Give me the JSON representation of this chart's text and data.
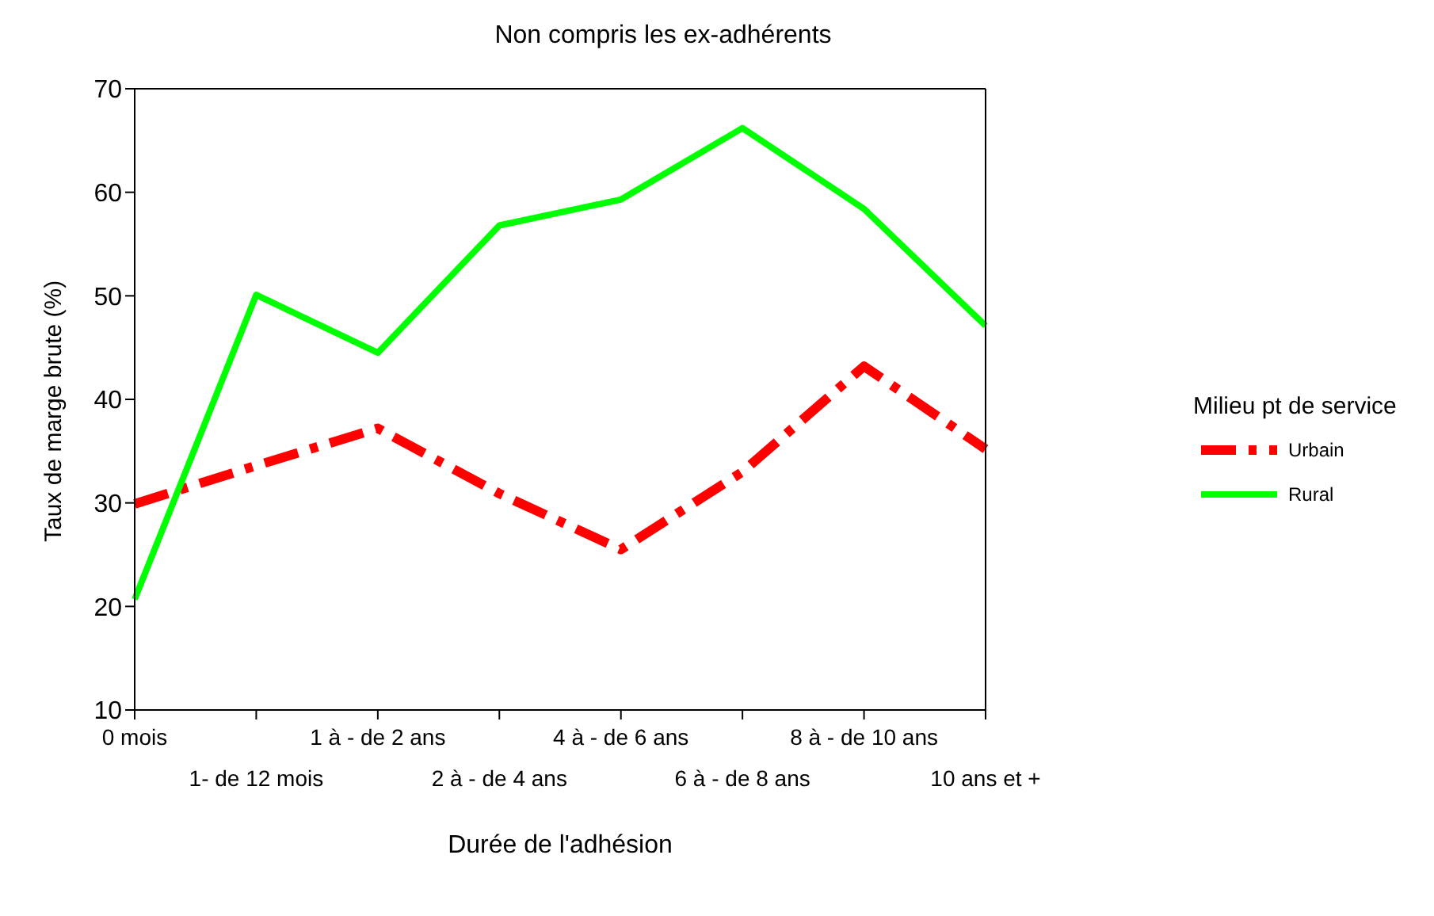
{
  "chart_data": {
    "type": "line",
    "title": "Non compris les ex-adhérents",
    "xlabel": "Durée de l'adhésion",
    "ylabel": "Taux de marge brute (%)",
    "legend_title": "Milieu pt de service",
    "categories": [
      "0 mois",
      "1- de 12 mois",
      "1 à - de 2 ans",
      "2 à - de 4 ans",
      "4 à - de 6 ans",
      "6 à - de 8 ans",
      "8 à - de 10 ans",
      "10 ans et +"
    ],
    "series": [
      {
        "name": "Urbain",
        "color": "#ff0000",
        "line_style": "dashed",
        "values": [
          29.9,
          33.6,
          37.2,
          30.9,
          25.5,
          33,
          43.2,
          35.2
        ]
      },
      {
        "name": "Rural",
        "color": "#00ff00",
        "line_style": "solid",
        "values": [
          20.7,
          50.1,
          44.5,
          56.8,
          59.3,
          66.2,
          58.4,
          47.1
        ]
      }
    ],
    "ylim": [
      10,
      70
    ],
    "yticks": [
      10,
      20,
      30,
      40,
      50,
      60,
      70
    ],
    "grid": false,
    "legend": "right",
    "marker": "none"
  }
}
